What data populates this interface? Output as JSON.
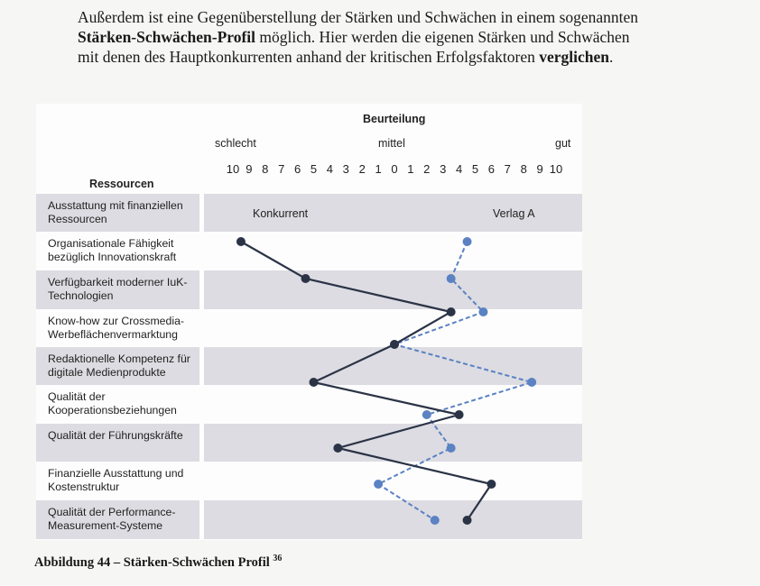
{
  "paragraph": {
    "line1": "Außerdem ist eine Gegenüberstellung der Stärken und Schwächen in einem sogenannten",
    "line2_bold": "Stärken-Schwächen-Profil",
    "line2_rest": " möglich. Hier werden die eigenen Stärken und Schwächen",
    "line3_start": "mit denen des Hauptkonkurrenten anhand der kritischen Erfolgsfaktoren ",
    "line3_bold": "verglichen",
    "line3_end": "."
  },
  "chart_data": {
    "type": "line",
    "title": "Beurteilung",
    "scale_labels": {
      "left": "schlecht",
      "middle": "mittel",
      "right": "gut"
    },
    "tick_labels": [
      "10",
      "9",
      "8",
      "7",
      "6",
      "5",
      "4",
      "3",
      "2",
      "1",
      "0",
      "1",
      "2",
      "3",
      "4",
      "5",
      "6",
      "7",
      "8",
      "9",
      "10"
    ],
    "xlim": [
      -10,
      10
    ],
    "row_header": "Ressourcen",
    "categories": [
      "Ausstattung mit finanziellen Ressourcen",
      "Organisationale Fähigkeit bezüglich Innovationskraft",
      "Verfügbarkeit moderner IuK-Technologien",
      "Know-how zur Crossmedia-Werbeflächenvermarktung",
      "Redaktionelle Kompetenz für digitale Medienprodukte",
      "Qualität der Kooperationsbeziehungen",
      "Qualität der Führungskräfte",
      "Finanzielle Ausstattung und Kostenstruktur",
      "Qualität der Performance-Measurement-Systeme"
    ],
    "series": [
      {
        "name": "Konkurrent",
        "color": "#2b3346",
        "style": "solid",
        "values": [
          -9.5,
          -5.5,
          3.5,
          0,
          -5,
          4,
          -3.5,
          6,
          4.5
        ]
      },
      {
        "name": "Verlag A",
        "color": "#5b82c2",
        "style": "dashed",
        "values": [
          4.5,
          3.5,
          5.5,
          0,
          8.5,
          2,
          3.5,
          -1,
          2.5
        ]
      }
    ]
  },
  "caption": {
    "text": "Abbildung 44 – Stärken-Schwächen Profil",
    "footnote": "36"
  }
}
